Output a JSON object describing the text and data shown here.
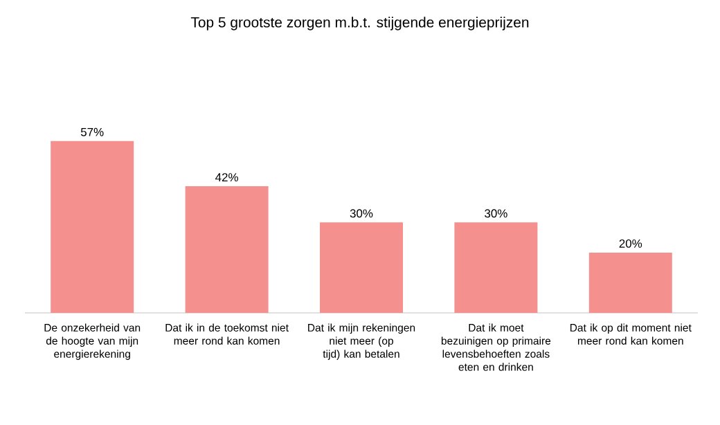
{
  "chart_data": {
    "type": "bar",
    "title": "Top 5 grootste zorgen m.b.t. stijgende energieprijzen",
    "categories": [
      "De onzekerheid van de hoogte van mijn energierekening",
      "Dat ik in de toekomst niet meer rond kan komen",
      "Dat ik mijn rekeningen niet meer (op tijd) kan betalen",
      "Dat ik moet bezuinigen op primaire levensbehoeften zoals eten en drinken",
      "Dat ik op dit moment niet meer rond kan komen"
    ],
    "values": [
      57,
      42,
      30,
      30,
      20
    ],
    "value_labels": [
      "57%",
      "42%",
      "30%",
      "30%",
      "20%"
    ],
    "color": "#f4908e",
    "tick_labels": "x"
  }
}
